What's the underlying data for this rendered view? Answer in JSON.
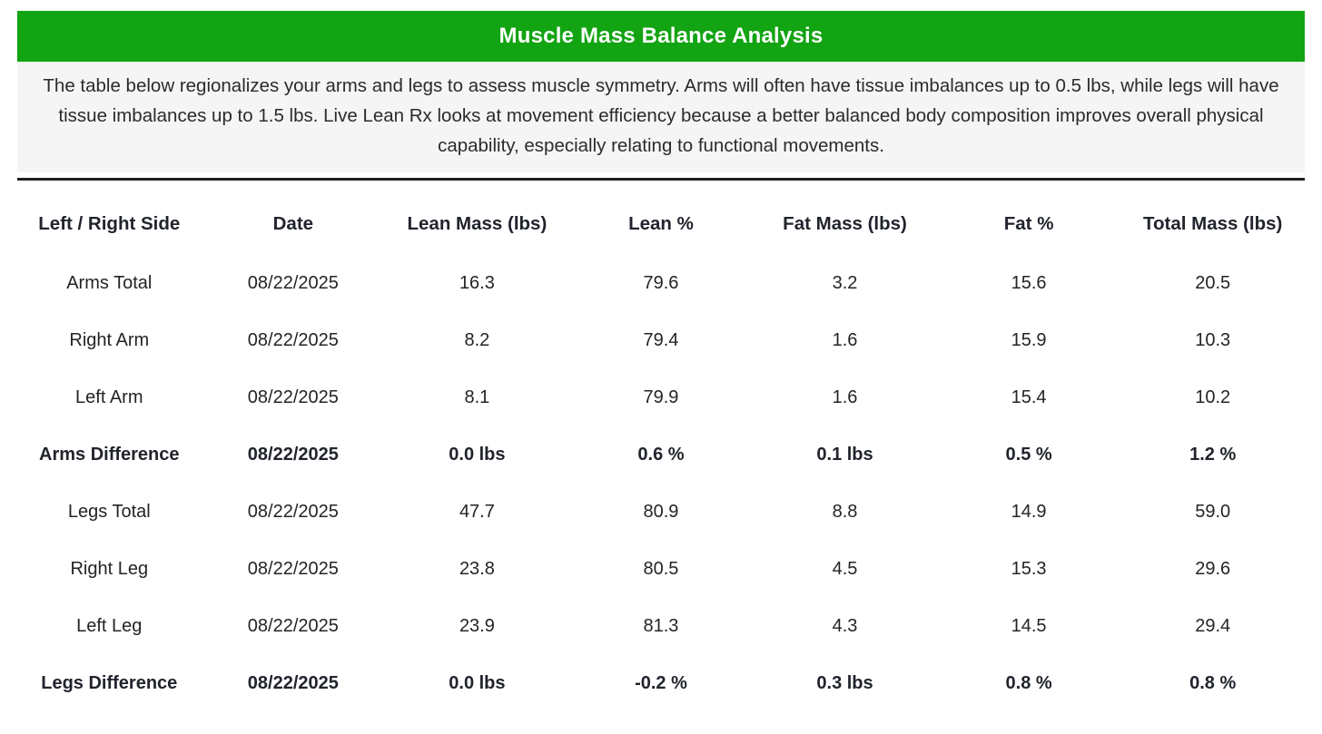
{
  "title_bar": {
    "title": "Muscle Mass Balance Analysis",
    "background_color": "#12A412",
    "text_color": "#FFFFFF"
  },
  "description": {
    "text": "The table below regionalizes your arms and legs to assess muscle symmetry. Arms will often have tissue imbalances up to 0.5 lbs, while legs will have tissue imbalances up to 1.5 lbs. Live Lean Rx looks at movement efficiency because a better balanced body composition improves overall physical capability, especially relating to functional movements.",
    "background_color": "#F5F5F5"
  },
  "divider_color": "#1F1F1F",
  "chart_data": {
    "type": "table",
    "title": "Muscle Mass Balance Analysis",
    "columns": [
      "Left / Right Side",
      "Date",
      "Lean Mass (lbs)",
      "Lean %",
      "Fat Mass (lbs)",
      "Fat %",
      "Total Mass (lbs)"
    ],
    "rows": [
      {
        "name": "arms-total",
        "bold": false,
        "cells": [
          "Arms Total",
          "08/22/2025",
          "16.3",
          "79.6",
          "3.2",
          "15.6",
          "20.5"
        ]
      },
      {
        "name": "right-arm",
        "bold": false,
        "cells": [
          "Right Arm",
          "08/22/2025",
          "8.2",
          "79.4",
          "1.6",
          "15.9",
          "10.3"
        ]
      },
      {
        "name": "left-arm",
        "bold": false,
        "cells": [
          "Left Arm",
          "08/22/2025",
          "8.1",
          "79.9",
          "1.6",
          "15.4",
          "10.2"
        ]
      },
      {
        "name": "arms-difference",
        "bold": true,
        "cells": [
          "Arms Difference",
          "08/22/2025",
          "0.0 lbs",
          "0.6 %",
          "0.1 lbs",
          "0.5 %",
          "1.2 %"
        ]
      },
      {
        "name": "legs-total",
        "bold": false,
        "cells": [
          "Legs Total",
          "08/22/2025",
          "47.7",
          "80.9",
          "8.8",
          "14.9",
          "59.0"
        ]
      },
      {
        "name": "right-leg",
        "bold": false,
        "cells": [
          "Right Leg",
          "08/22/2025",
          "23.8",
          "80.5",
          "4.5",
          "15.3",
          "29.6"
        ]
      },
      {
        "name": "left-leg",
        "bold": false,
        "cells": [
          "Left Leg",
          "08/22/2025",
          "23.9",
          "81.3",
          "4.3",
          "14.5",
          "29.4"
        ]
      },
      {
        "name": "legs-difference",
        "bold": true,
        "cells": [
          "Legs Difference",
          "08/22/2025",
          "0.0 lbs",
          "-0.2 %",
          "0.3 lbs",
          "0.8 %",
          "0.8 %"
        ]
      }
    ],
    "layout_hints": {
      "column_alignment": "center",
      "gridlines": "none",
      "bold_rows": [
        "Arms Difference",
        "Legs Difference"
      ]
    }
  }
}
